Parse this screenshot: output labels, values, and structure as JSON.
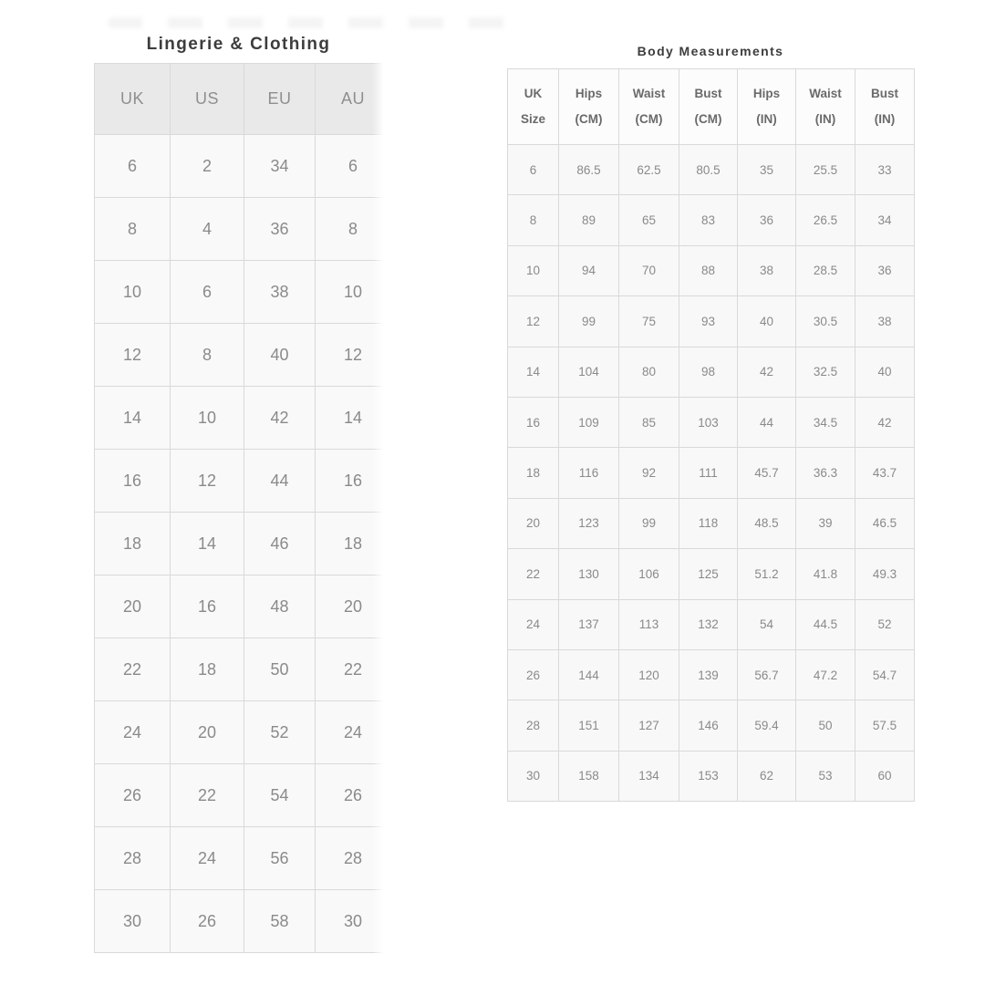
{
  "colors": {
    "page_bg": "#ffffff",
    "title_color": "#3d3d3d",
    "left_header_bg": "#e9e9e9",
    "left_header_text": "#8f8f8f",
    "cell_bg": "#f9f9f9",
    "cell_text": "#8a8a8a",
    "border_color": "#d9d9d9",
    "right_header_bg": "#fcfcfc",
    "right_header_text": "#6a6a6a"
  },
  "lingerie_clothing": {
    "title": "Lingerie & Clothing",
    "columns": [
      "UK",
      "US",
      "EU",
      "AU"
    ],
    "rows": [
      [
        "6",
        "2",
        "34",
        "6"
      ],
      [
        "8",
        "4",
        "36",
        "8"
      ],
      [
        "10",
        "6",
        "38",
        "10"
      ],
      [
        "12",
        "8",
        "40",
        "12"
      ],
      [
        "14",
        "10",
        "42",
        "14"
      ],
      [
        "16",
        "12",
        "44",
        "16"
      ],
      [
        "18",
        "14",
        "46",
        "18"
      ],
      [
        "20",
        "16",
        "48",
        "20"
      ],
      [
        "22",
        "18",
        "50",
        "22"
      ],
      [
        "24",
        "20",
        "52",
        "24"
      ],
      [
        "26",
        "22",
        "54",
        "26"
      ],
      [
        "28",
        "24",
        "56",
        "28"
      ],
      [
        "30",
        "26",
        "58",
        "30"
      ]
    ]
  },
  "body_measurements": {
    "title": "Body Measurements",
    "columns": [
      [
        "UK",
        "Size"
      ],
      [
        "Hips",
        "(CM)"
      ],
      [
        "Waist",
        "(CM)"
      ],
      [
        "Bust",
        "(CM)"
      ],
      [
        "Hips",
        "(IN)"
      ],
      [
        "Waist",
        "(IN)"
      ],
      [
        "Bust",
        "(IN)"
      ]
    ],
    "rows": [
      [
        "6",
        "86.5",
        "62.5",
        "80.5",
        "35",
        "25.5",
        "33"
      ],
      [
        "8",
        "89",
        "65",
        "83",
        "36",
        "26.5",
        "34"
      ],
      [
        "10",
        "94",
        "70",
        "88",
        "38",
        "28.5",
        "36"
      ],
      [
        "12",
        "99",
        "75",
        "93",
        "40",
        "30.5",
        "38"
      ],
      [
        "14",
        "104",
        "80",
        "98",
        "42",
        "32.5",
        "40"
      ],
      [
        "16",
        "109",
        "85",
        "103",
        "44",
        "34.5",
        "42"
      ],
      [
        "18",
        "116",
        "92",
        "111",
        "45.7",
        "36.3",
        "43.7"
      ],
      [
        "20",
        "123",
        "99",
        "118",
        "48.5",
        "39",
        "46.5"
      ],
      [
        "22",
        "130",
        "106",
        "125",
        "51.2",
        "41.8",
        "49.3"
      ],
      [
        "24",
        "137",
        "113",
        "132",
        "54",
        "44.5",
        "52"
      ],
      [
        "26",
        "144",
        "120",
        "139",
        "56.7",
        "47.2",
        "54.7"
      ],
      [
        "28",
        "151",
        "127",
        "146",
        "59.4",
        "50",
        "57.5"
      ],
      [
        "30",
        "158",
        "134",
        "153",
        "62",
        "53",
        "60"
      ]
    ]
  }
}
